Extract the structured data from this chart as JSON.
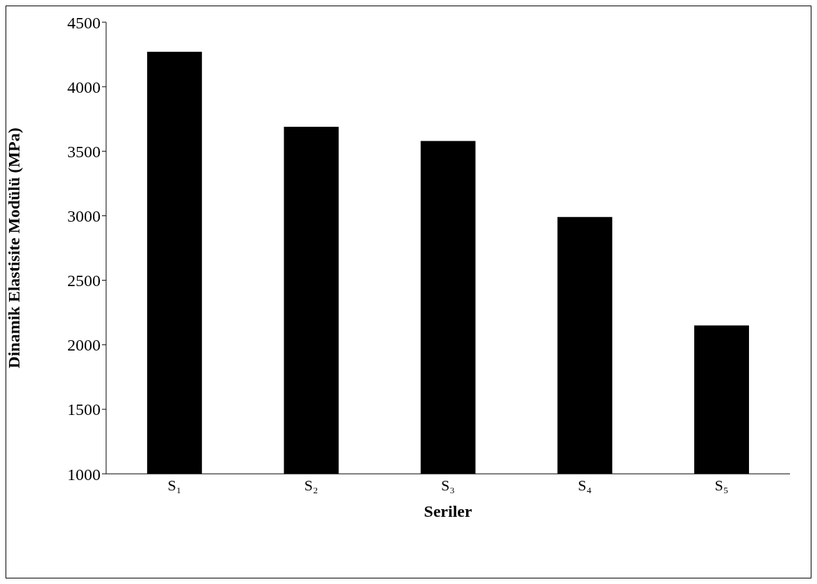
{
  "chart_data": {
    "type": "bar",
    "xlabel": "Seriler",
    "ylabel": "Dinamik Elastisite Modülü (MPa)",
    "categories": [
      "S₁",
      "S₂",
      "S₃",
      "S₄",
      "S₅"
    ],
    "values": [
      4270,
      3690,
      3580,
      2990,
      2150
    ],
    "color": "#000000",
    "ylim": [
      1000,
      4500
    ],
    "yticks": [
      1000,
      1500,
      2000,
      2500,
      3000,
      3500,
      4000,
      4500
    ],
    "grid": false
  }
}
